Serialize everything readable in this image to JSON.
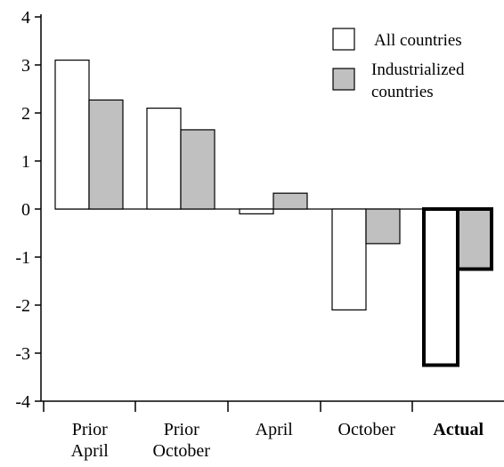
{
  "chart_data": {
    "type": "bar",
    "title": "",
    "xlabel": "",
    "ylabel": "",
    "ylim": [
      -4,
      4
    ],
    "yticks": [
      4,
      3,
      2,
      1,
      0,
      -1,
      -2,
      -3,
      -4
    ],
    "ytick_labels": [
      "4",
      "3",
      "2",
      "1",
      "0",
      "-1",
      "-2",
      "-3",
      "-4"
    ],
    "categories": [
      [
        "Prior",
        "April"
      ],
      [
        "Prior",
        "October"
      ],
      [
        "April"
      ],
      [
        "October"
      ],
      [
        "Actual"
      ]
    ],
    "emphasized_category": "Actual",
    "series": [
      {
        "name": "All countries",
        "values": [
          3.1,
          2.1,
          -0.1,
          -2.1,
          -3.25
        ],
        "color": "#ffffff"
      },
      {
        "name": "Industrialized countries",
        "legend_lines": [
          "Industrialized",
          "countries"
        ],
        "values": [
          2.27,
          1.65,
          0.33,
          -0.72,
          -1.25
        ],
        "color": "#c0c0c0"
      }
    ],
    "legend_position": "top-right",
    "grid": false
  }
}
